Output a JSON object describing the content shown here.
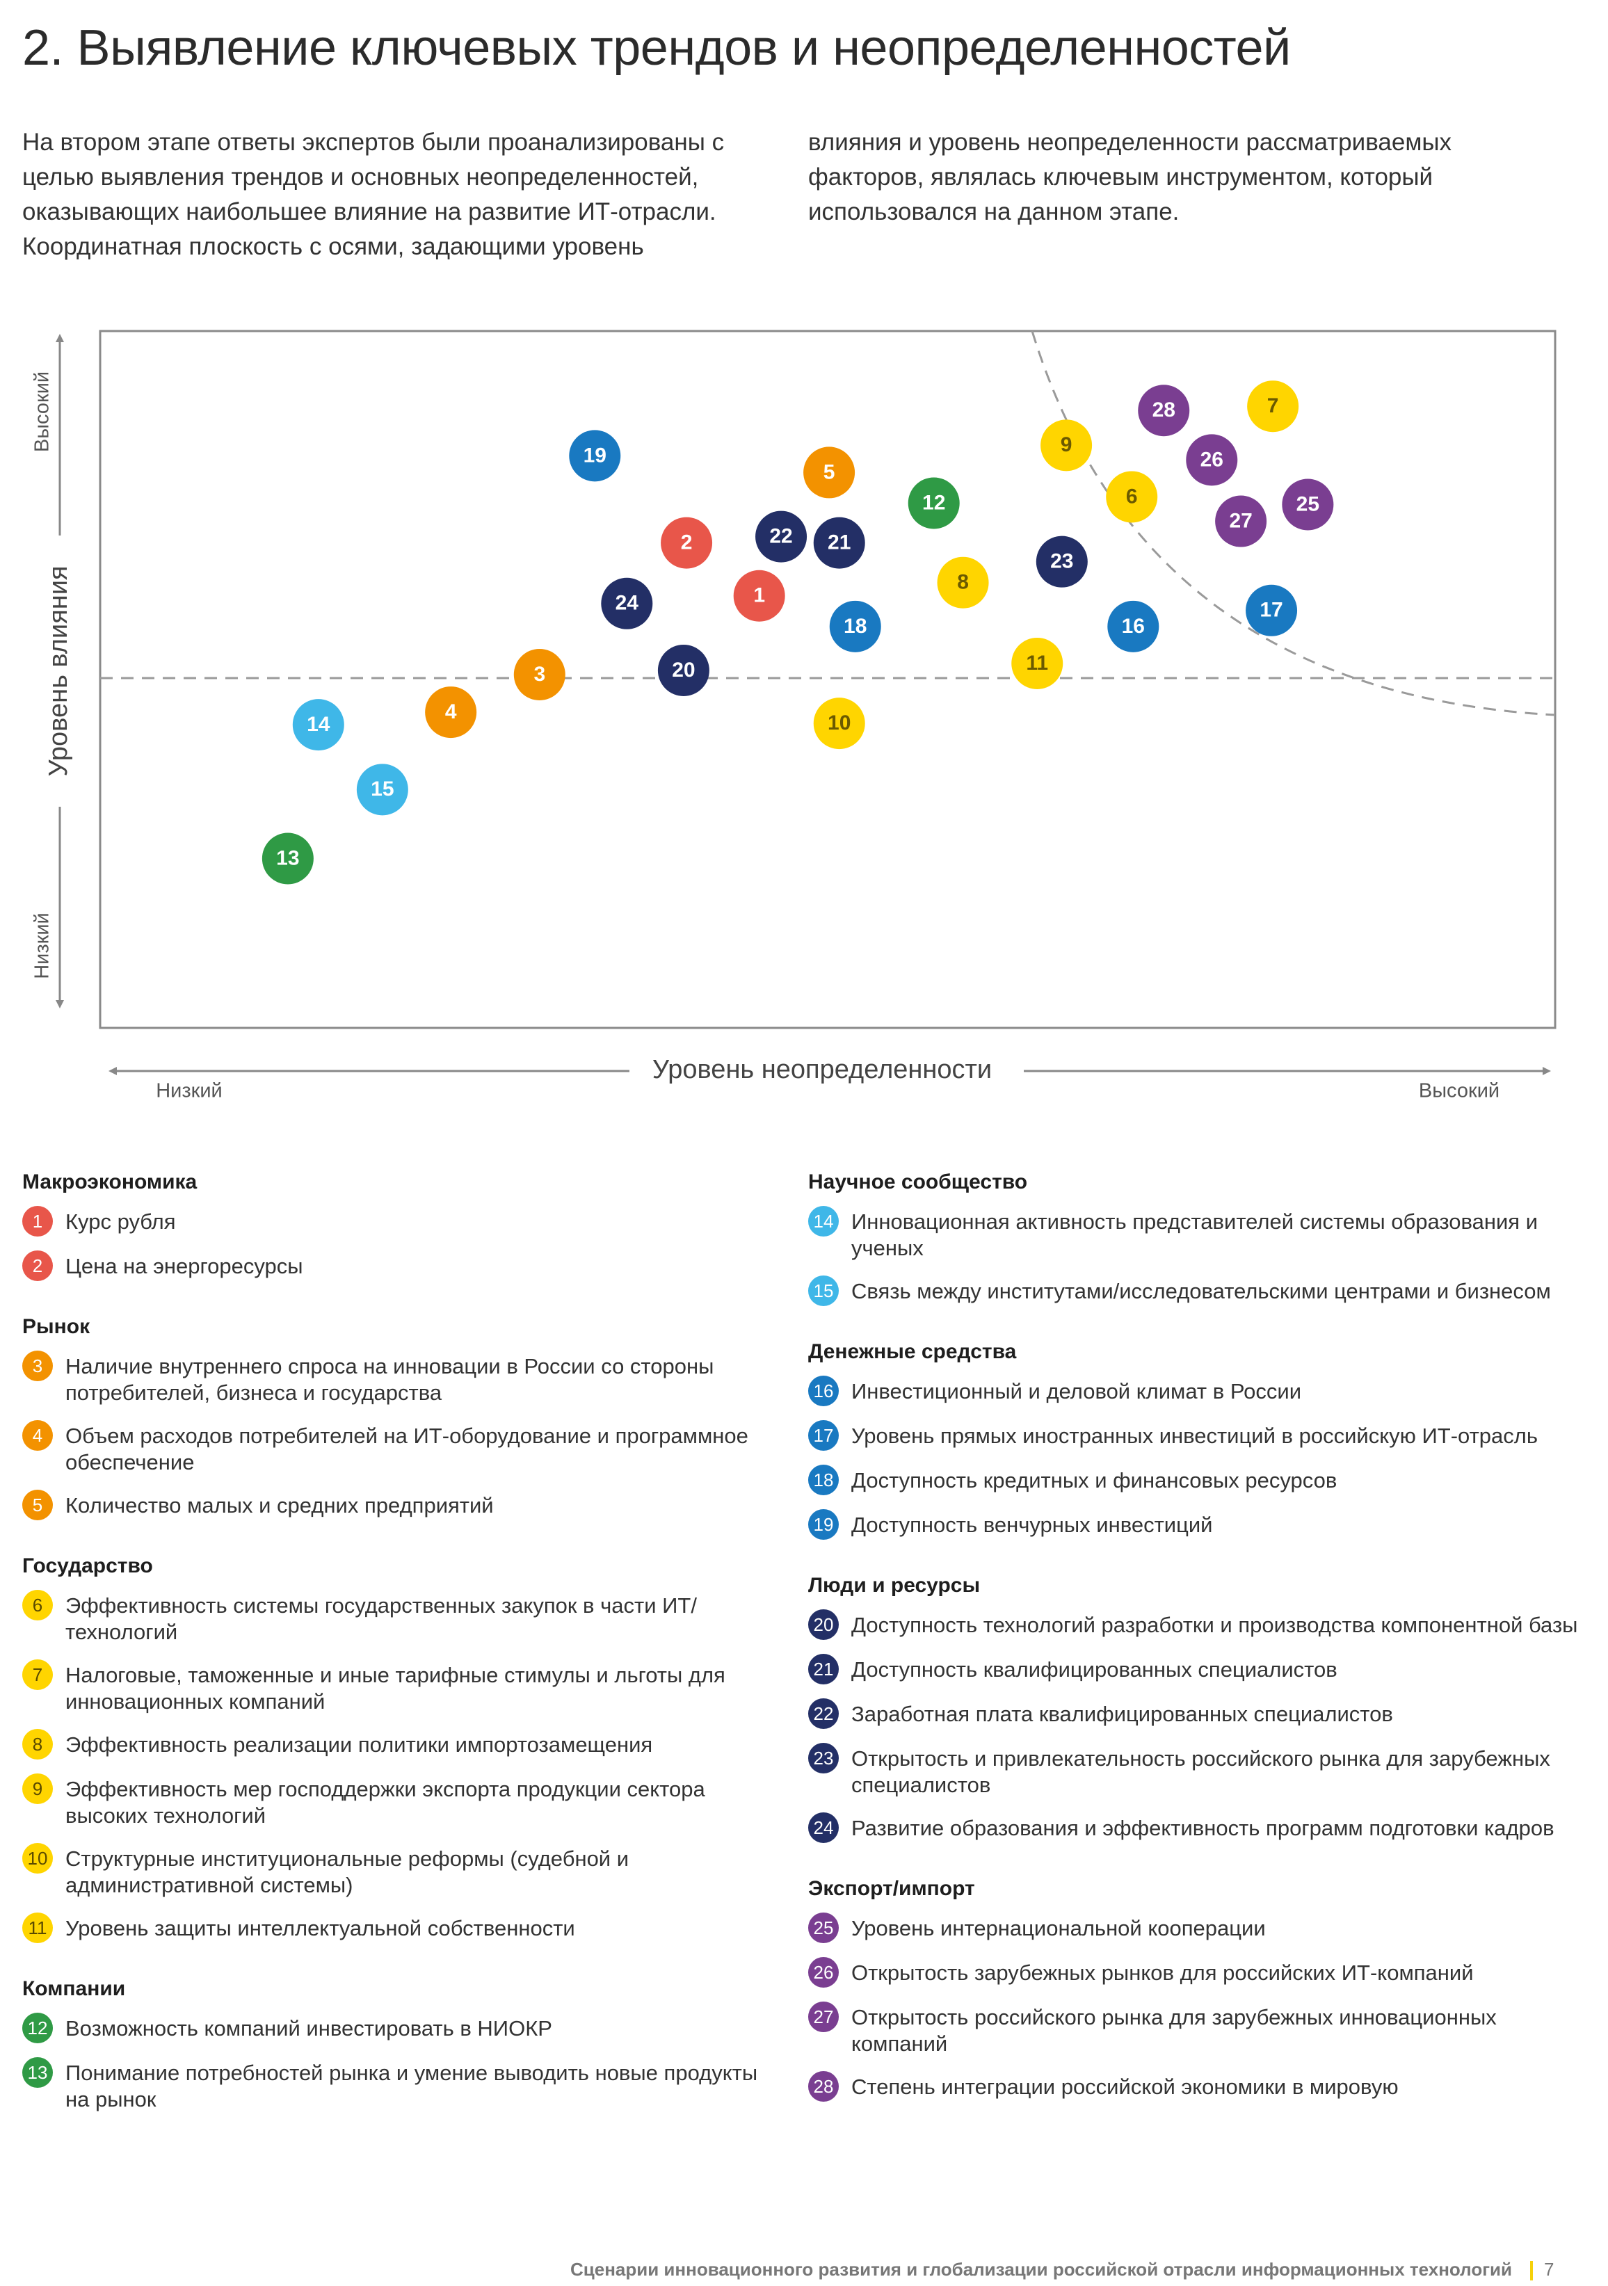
{
  "title": "2. Выявление ключевых трендов и неопределенностей",
  "intro": {
    "left": "На втором этапе ответы экспертов были проанализированы с целью выявления трендов и основных неопределенностей, оказывающих наибольшее влияние на развитие ИТ-отрасли. Координатная плоскость с осями, задающими уровень",
    "right": "влияния и уровень неопределенности рассматриваемых факторов, являлась ключевым инструментом, который использовался на данном этапе."
  },
  "colors": {
    "red": "#e8564a",
    "orange": "#f39200",
    "yellow": "#ffd500",
    "green": "#2f9a45",
    "light_blue": "#3fb7e8",
    "blue": "#1979c1",
    "navy": "#232f66",
    "purple": "#7a3e91"
  },
  "chart_data": {
    "type": "scatter",
    "xlabel": "Уровень неопределенности",
    "ylabel": "Уровень влияния",
    "x_low": "Низкий",
    "x_high": "Высокий",
    "y_low": "Низкий",
    "y_high": "Высокий",
    "xlim": [
      0,
      100
    ],
    "ylim": [
      0,
      100
    ],
    "points": [
      {
        "id": "1",
        "x": 45.3,
        "y": 62.0,
        "color": "red"
      },
      {
        "id": "2",
        "x": 40.3,
        "y": 69.6,
        "color": "red"
      },
      {
        "id": "3",
        "x": 30.2,
        "y": 50.7,
        "color": "orange"
      },
      {
        "id": "4",
        "x": 24.1,
        "y": 45.3,
        "color": "orange"
      },
      {
        "id": "5",
        "x": 50.1,
        "y": 79.7,
        "color": "orange"
      },
      {
        "id": "6",
        "x": 70.9,
        "y": 76.2,
        "color": "yellow"
      },
      {
        "id": "7",
        "x": 80.6,
        "y": 89.2,
        "color": "yellow"
      },
      {
        "id": "8",
        "x": 59.3,
        "y": 63.9,
        "color": "yellow"
      },
      {
        "id": "9",
        "x": 66.4,
        "y": 83.6,
        "color": "yellow"
      },
      {
        "id": "10",
        "x": 50.8,
        "y": 43.7,
        "color": "yellow"
      },
      {
        "id": "11",
        "x": 64.4,
        "y": 52.3,
        "color": "yellow"
      },
      {
        "id": "12",
        "x": 57.3,
        "y": 75.3,
        "color": "green"
      },
      {
        "id": "13",
        "x": 12.9,
        "y": 24.3,
        "color": "green"
      },
      {
        "id": "14",
        "x": 15.0,
        "y": 43.5,
        "color": "light_blue"
      },
      {
        "id": "15",
        "x": 19.4,
        "y": 34.2,
        "color": "light_blue"
      },
      {
        "id": "16",
        "x": 71.0,
        "y": 57.6,
        "color": "blue"
      },
      {
        "id": "17",
        "x": 80.5,
        "y": 59.9,
        "color": "blue"
      },
      {
        "id": "18",
        "x": 51.9,
        "y": 57.6,
        "color": "blue"
      },
      {
        "id": "19",
        "x": 34.0,
        "y": 82.1,
        "color": "blue"
      },
      {
        "id": "20",
        "x": 40.1,
        "y": 51.3,
        "color": "navy"
      },
      {
        "id": "21",
        "x": 50.8,
        "y": 69.6,
        "color": "navy"
      },
      {
        "id": "22",
        "x": 46.8,
        "y": 70.5,
        "color": "navy"
      },
      {
        "id": "23",
        "x": 66.1,
        "y": 66.9,
        "color": "navy"
      },
      {
        "id": "24",
        "x": 36.2,
        "y": 60.9,
        "color": "navy"
      },
      {
        "id": "25",
        "x": 83.0,
        "y": 75.1,
        "color": "purple"
      },
      {
        "id": "26",
        "x": 76.4,
        "y": 81.5,
        "color": "purple"
      },
      {
        "id": "27",
        "x": 78.4,
        "y": 72.7,
        "color": "purple"
      },
      {
        "id": "28",
        "x": 73.1,
        "y": 88.6,
        "color": "purple"
      }
    ],
    "threshold_y": 50.2
  },
  "legend": {
    "left": [
      {
        "title": "Макроэкономика",
        "items": [
          {
            "id": "1",
            "color": "red",
            "text": "Курс рубля"
          },
          {
            "id": "2",
            "color": "red",
            "text": "Цена на энергоресурсы"
          }
        ]
      },
      {
        "title": "Рынок",
        "items": [
          {
            "id": "3",
            "color": "orange",
            "text": "Наличие внутреннего спроса на инновации в России со стороны потребителей, бизнеса и государства"
          },
          {
            "id": "4",
            "color": "orange",
            "text": "Объем расходов потребителей на ИТ-оборудование и программное обеспечение"
          },
          {
            "id": "5",
            "color": "orange",
            "text": "Количество малых и средних предприятий"
          }
        ]
      },
      {
        "title": "Государство",
        "items": [
          {
            "id": "6",
            "color": "yellow",
            "text": "Эффективность системы государственных закупок в части ИТ/технологий"
          },
          {
            "id": "7",
            "color": "yellow",
            "text": "Налоговые, таможенные и иные тарифные стимулы и льготы для инновационных компаний"
          },
          {
            "id": "8",
            "color": "yellow",
            "text": "Эффективность реализации политики импортозамещения"
          },
          {
            "id": "9",
            "color": "yellow",
            "text": "Эффективность мер господдержки экспорта продукции сектора высоких технологий"
          },
          {
            "id": "10",
            "color": "yellow",
            "text": "Структурные институциональные реформы (судебной и административной системы)"
          },
          {
            "id": "11",
            "color": "yellow",
            "text": "Уровень защиты интеллектуальной собственности"
          }
        ]
      },
      {
        "title": "Компании",
        "items": [
          {
            "id": "12",
            "color": "green",
            "text": "Возможность компаний инвестировать в НИОКР"
          },
          {
            "id": "13",
            "color": "green",
            "text": "Понимание потребностей рынка и умение выводить новые продукты на рынок"
          }
        ]
      }
    ],
    "right": [
      {
        "title": "Научное сообщество",
        "items": [
          {
            "id": "14",
            "color": "light_blue",
            "text": "Инновационная активность представителей системы образования и ученых"
          },
          {
            "id": "15",
            "color": "light_blue",
            "text": "Связь между институтами/исследовательскими центрами и бизнесом"
          }
        ]
      },
      {
        "title": "Денежные средства",
        "items": [
          {
            "id": "16",
            "color": "blue",
            "text": "Инвестиционный и деловой климат в России"
          },
          {
            "id": "17",
            "color": "blue",
            "text": "Уровень прямых иностранных инвестиций в российскую ИТ-отрасль"
          },
          {
            "id": "18",
            "color": "blue",
            "text": "Доступность кредитных и финансовых ресурсов"
          },
          {
            "id": "19",
            "color": "blue",
            "text": "Доступность венчурных инвестиций"
          }
        ]
      },
      {
        "title": "Люди и ресурсы",
        "items": [
          {
            "id": "20",
            "color": "navy",
            "text": "Доступность технологий разработки и производства компонентной базы"
          },
          {
            "id": "21",
            "color": "navy",
            "text": "Доступность квалифицированных специалистов"
          },
          {
            "id": "22",
            "color": "navy",
            "text": "Заработная плата квалифицированных специалистов"
          },
          {
            "id": "23",
            "color": "navy",
            "text": "Открытость и привлекательность российского рынка для зарубежных специалистов"
          },
          {
            "id": "24",
            "color": "navy",
            "text": "Развитие образования и эффективность программ подготовки кадров"
          }
        ]
      },
      {
        "title": "Экспорт/импорт",
        "items": [
          {
            "id": "25",
            "color": "purple",
            "text": "Уровень интернациональной кооперации"
          },
          {
            "id": "26",
            "color": "purple",
            "text": "Открытость зарубежных рынков для российских ИТ-компаний"
          },
          {
            "id": "27",
            "color": "purple",
            "text": "Открытость российского рынка для зарубежных инновационных компаний"
          },
          {
            "id": "28",
            "color": "purple",
            "text": "Степень интеграции российской экономики в мировую"
          }
        ]
      }
    ]
  },
  "footer": {
    "text": "Сценарии инновационного развития и глобализации российской отрасли информационных технологий",
    "page": "7"
  }
}
